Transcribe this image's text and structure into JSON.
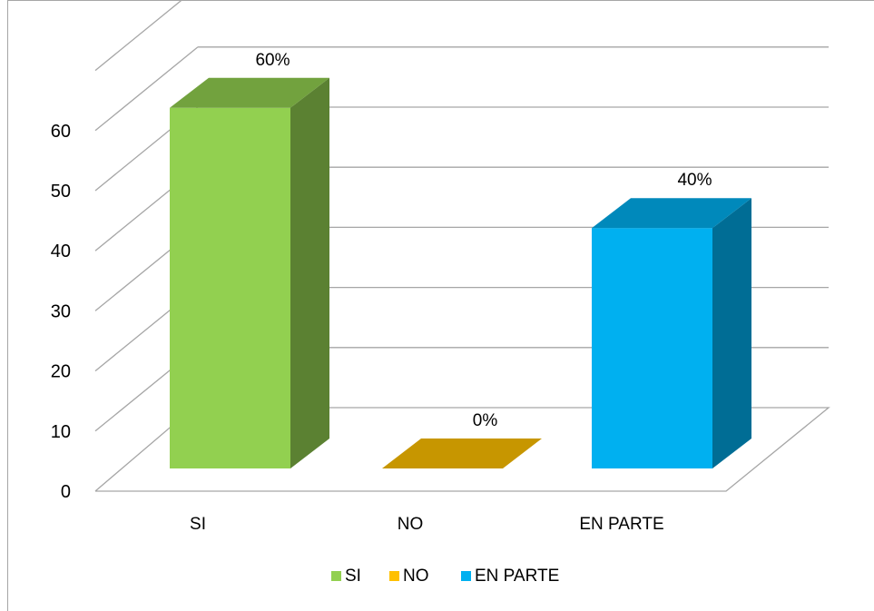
{
  "chart_data": {
    "type": "bar",
    "categories": [
      "SI",
      "NO",
      "EN PARTE"
    ],
    "series": [
      {
        "name": "SI",
        "values": [
          60,
          null,
          null
        ],
        "color": "#92d050",
        "label": "60%"
      },
      {
        "name": "NO",
        "values": [
          null,
          0,
          null
        ],
        "color": "#ffc000",
        "label": "0%"
      },
      {
        "name": "EN PARTE",
        "values": [
          null,
          null,
          40
        ],
        "color": "#00b0f0",
        "label": "40%"
      }
    ],
    "yticks": [
      "0",
      "10",
      "20",
      "30",
      "40",
      "50",
      "60"
    ],
    "ylim": [
      0,
      70
    ],
    "grid": true,
    "legend": "bottom",
    "style": "3d-column"
  }
}
